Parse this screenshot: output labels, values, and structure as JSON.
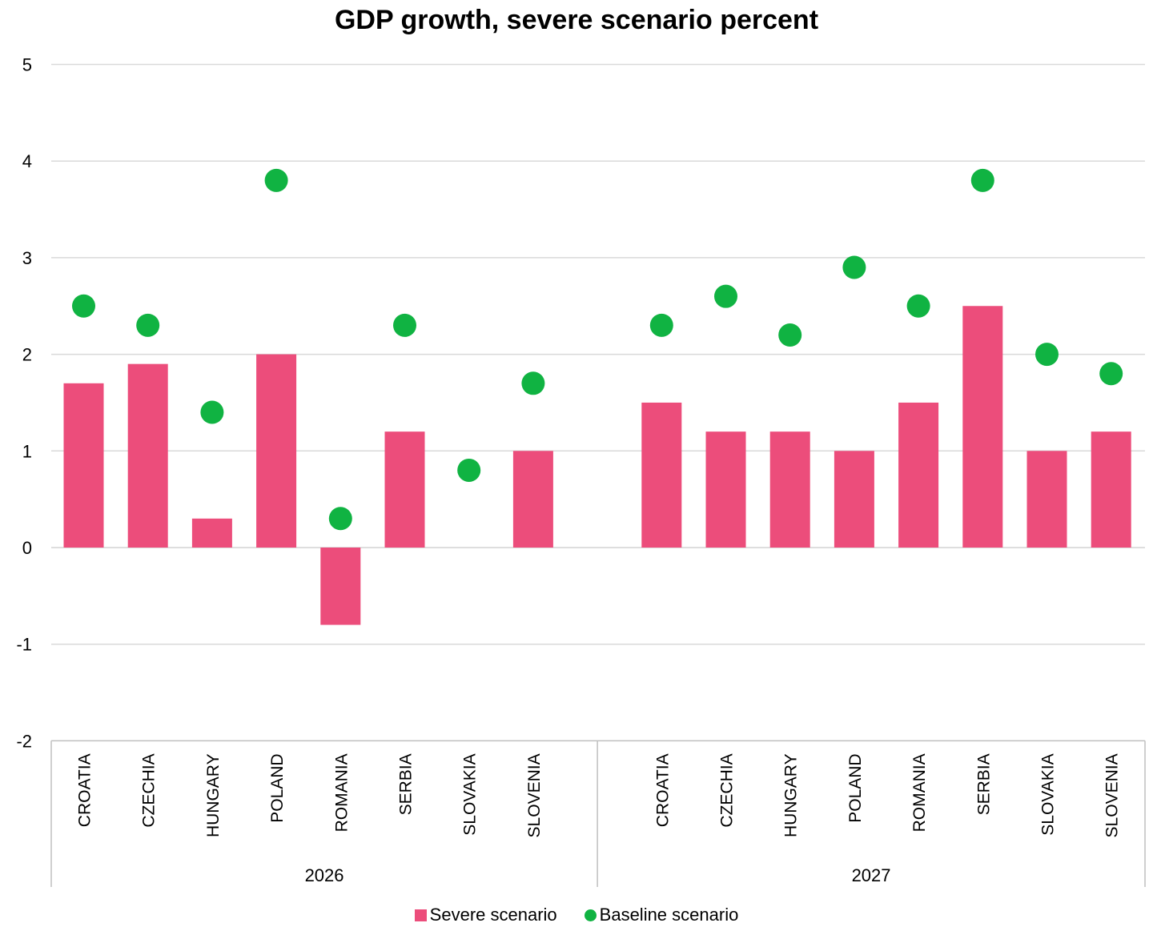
{
  "chart_data": {
    "type": "bar",
    "title": "GDP growth, severe scenario percent",
    "xlabel": "",
    "ylabel": "",
    "ylim": [
      -2,
      5
    ],
    "yticks": [
      5,
      4,
      3,
      2,
      1,
      0,
      -1,
      -2
    ],
    "grid": true,
    "legend_position": "bottom",
    "groups": [
      {
        "label": "2026",
        "categories": [
          "CROATIA",
          "CZECHIA",
          "HUNGARY",
          "POLAND",
          "ROMANIA",
          "SERBIA",
          "SLOVAKIA",
          "SLOVENIA"
        ]
      },
      {
        "label": "2027",
        "categories": [
          "CROATIA",
          "CZECHIA",
          "HUNGARY",
          "POLAND",
          "ROMANIA",
          "SERBIA",
          "SLOVAKIA",
          "SLOVENIA"
        ]
      }
    ],
    "series": [
      {
        "name": "Severe scenario",
        "kind": "bar",
        "color": "#ec4d7b",
        "values": [
          1.7,
          1.9,
          0.3,
          2.0,
          -0.8,
          1.2,
          0.0,
          1.0,
          1.5,
          1.2,
          1.2,
          1.0,
          1.5,
          2.5,
          1.0,
          1.2
        ]
      },
      {
        "name": "Baseline scenario",
        "kind": "marker",
        "color": "#10b342",
        "values": [
          2.5,
          2.3,
          1.4,
          3.8,
          0.3,
          2.3,
          0.8,
          1.7,
          2.3,
          2.6,
          2.2,
          2.9,
          2.5,
          3.8,
          2.0,
          1.8
        ]
      }
    ]
  },
  "colors": {
    "grid": "#d9d9d9",
    "axis": "#bfbfbf"
  }
}
